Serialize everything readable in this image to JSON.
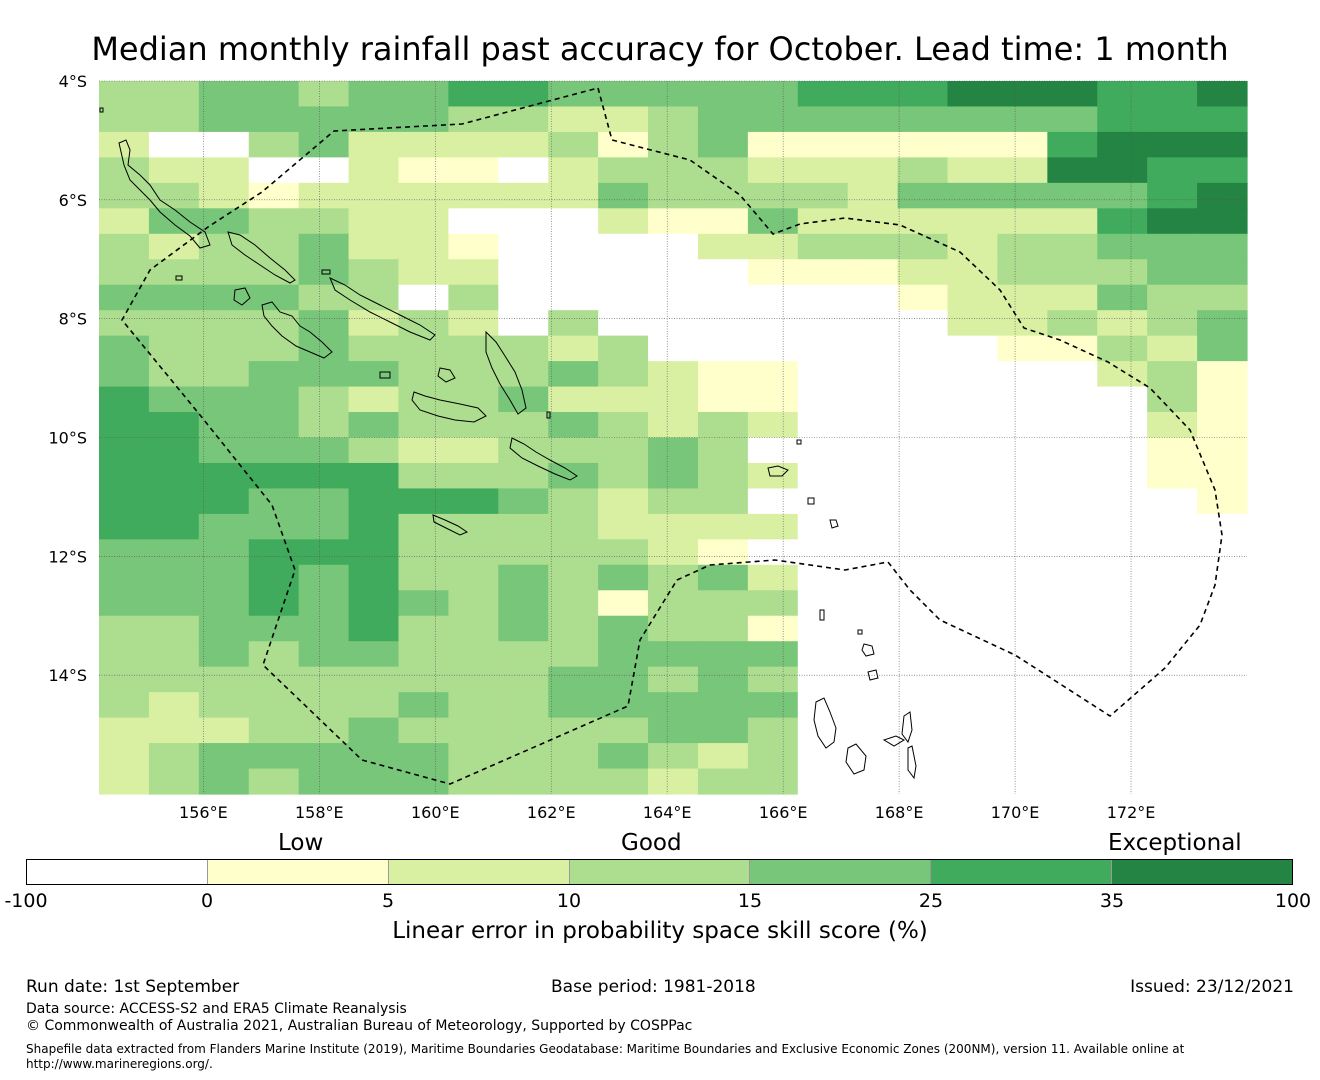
{
  "title": "Median monthly rainfall past accuracy for October. Lead time: 1 month",
  "map": {
    "lon_range": [
      154.2,
      174.0
    ],
    "lat_range": [
      -16.0,
      -4.0
    ],
    "lat_ticks": [
      "4°S",
      "6°S",
      "8°S",
      "10°S",
      "12°S",
      "14°S"
    ],
    "lon_ticks": [
      "156°E",
      "158°E",
      "160°E",
      "162°E",
      "164°E",
      "166°E",
      "168°E",
      "170°E",
      "172°E"
    ],
    "colors": [
      "#ffffff",
      "#ffffcc",
      "#d9f0a3",
      "#addd8e",
      "#78c679",
      "#41ab5d",
      "#238443"
    ],
    "grid_rows": [
      "33443445544444555666556",
      "33444443322344444444555",
      "20034222231341111115666",
      "32200211023332223226655",
      "33212222224333324444456",
      "24433220002114222222566",
      "32334221000022333233444",
      "33334322000001112233344",
      "44443303000000001222433",
      "33334232030000000223234",
      "43334333323000000011324",
      "43344433343211000000231",
      "54443233422211000000031",
      "55443433343232000000021",
      "55444322333430000000011",
      "55555533343432000000011",
      "55544555432330000000001",
      "55444533332222000000000",
      "44455533333210000000000",
      "44454533434342000000000",
      "44454543431333000000000",
      "33444533434331000000000",
      "33434433334444000000000",
      "33333333344343000000000",
      "32333343344444000000000",
      "22233433333443000000000",
      "23444443334323000000000",
      "23434443333233000000000"
    ]
  },
  "legend": {
    "categories": [
      "Low",
      "Good",
      "Exceptional"
    ],
    "ticks": [
      "-100",
      "0",
      "5",
      "10",
      "15",
      "25",
      "35",
      "100"
    ],
    "title": "Linear error in probability space skill score (%)"
  },
  "footer": {
    "run_date": "Run date: 1st September",
    "base_period": "Base period: 1981-2018",
    "issued": "Issued: 23/12/2021",
    "data_source": "Data source: ACCESS-S2 and ERA5 Climate Reanalysis",
    "copyright": "© Commonwealth of Australia 2021, Australian Bureau of Meteorology, Supported by COSPPac",
    "shapefile_line1": "Shapefile data extracted from Flanders Marine Institute (2019), Maritime Boundaries Geodatabase: Maritime Boundaries and Exclusive Economic Zones (200NM), version 11. Available online at",
    "shapefile_line2": "http://www.marineregions.org/."
  }
}
